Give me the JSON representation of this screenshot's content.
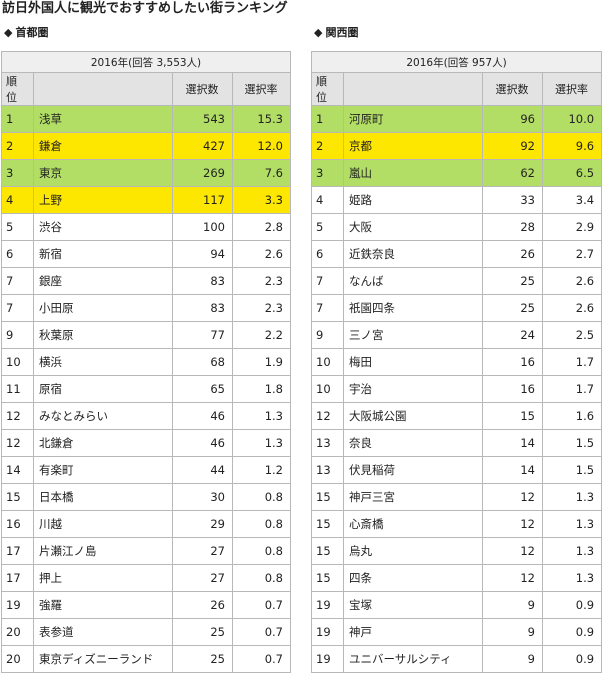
{
  "title": "訪日外国人に観光でおすすめしたい街ランキング",
  "colors": {
    "green": "#b3de66",
    "yellow": "#fde600"
  },
  "tables": [
    {
      "section": "首都圏",
      "caption": "2016年(回答 3,553人)",
      "headers": [
        "順位",
        "",
        "選択数",
        "選択率"
      ],
      "rows": [
        {
          "rank": "1",
          "name": "浅草",
          "count": "543",
          "rate": "15.3",
          "highlight": "green"
        },
        {
          "rank": "2",
          "name": "鎌倉",
          "count": "427",
          "rate": "12.0",
          "highlight": "yellow"
        },
        {
          "rank": "3",
          "name": "東京",
          "count": "269",
          "rate": "7.6",
          "highlight": "green"
        },
        {
          "rank": "4",
          "name": "上野",
          "count": "117",
          "rate": "3.3",
          "highlight": "yellow"
        },
        {
          "rank": "5",
          "name": "渋谷",
          "count": "100",
          "rate": "2.8",
          "highlight": ""
        },
        {
          "rank": "6",
          "name": "新宿",
          "count": "94",
          "rate": "2.6",
          "highlight": ""
        },
        {
          "rank": "7",
          "name": "銀座",
          "count": "83",
          "rate": "2.3",
          "highlight": ""
        },
        {
          "rank": "7",
          "name": "小田原",
          "count": "83",
          "rate": "2.3",
          "highlight": ""
        },
        {
          "rank": "9",
          "name": "秋葉原",
          "count": "77",
          "rate": "2.2",
          "highlight": ""
        },
        {
          "rank": "10",
          "name": "横浜",
          "count": "68",
          "rate": "1.9",
          "highlight": ""
        },
        {
          "rank": "11",
          "name": "原宿",
          "count": "65",
          "rate": "1.8",
          "highlight": ""
        },
        {
          "rank": "12",
          "name": "みなとみらい",
          "count": "46",
          "rate": "1.3",
          "highlight": ""
        },
        {
          "rank": "12",
          "name": "北鎌倉",
          "count": "46",
          "rate": "1.3",
          "highlight": ""
        },
        {
          "rank": "14",
          "name": "有楽町",
          "count": "44",
          "rate": "1.2",
          "highlight": ""
        },
        {
          "rank": "15",
          "name": "日本橋",
          "count": "30",
          "rate": "0.8",
          "highlight": ""
        },
        {
          "rank": "16",
          "name": "川越",
          "count": "29",
          "rate": "0.8",
          "highlight": ""
        },
        {
          "rank": "17",
          "name": "片瀬江ノ島",
          "count": "27",
          "rate": "0.8",
          "highlight": ""
        },
        {
          "rank": "17",
          "name": "押上",
          "count": "27",
          "rate": "0.8",
          "highlight": ""
        },
        {
          "rank": "19",
          "name": "強羅",
          "count": "26",
          "rate": "0.7",
          "highlight": ""
        },
        {
          "rank": "20",
          "name": "表参道",
          "count": "25",
          "rate": "0.7",
          "highlight": ""
        },
        {
          "rank": "20",
          "name": "東京ディズニーランド",
          "count": "25",
          "rate": "0.7",
          "highlight": ""
        }
      ]
    },
    {
      "section": "関西圏",
      "caption": "2016年(回答 957人)",
      "headers": [
        "順位",
        "",
        "選択数",
        "選択率"
      ],
      "rows": [
        {
          "rank": "1",
          "name": "河原町",
          "count": "96",
          "rate": "10.0",
          "highlight": "green"
        },
        {
          "rank": "2",
          "name": "京都",
          "count": "92",
          "rate": "9.6",
          "highlight": "yellow"
        },
        {
          "rank": "3",
          "name": "嵐山",
          "count": "62",
          "rate": "6.5",
          "highlight": "green"
        },
        {
          "rank": "4",
          "name": "姫路",
          "count": "33",
          "rate": "3.4",
          "highlight": ""
        },
        {
          "rank": "5",
          "name": "大阪",
          "count": "28",
          "rate": "2.9",
          "highlight": ""
        },
        {
          "rank": "6",
          "name": "近鉄奈良",
          "count": "26",
          "rate": "2.7",
          "highlight": ""
        },
        {
          "rank": "7",
          "name": "なんば",
          "count": "25",
          "rate": "2.6",
          "highlight": ""
        },
        {
          "rank": "7",
          "name": "祇園四条",
          "count": "25",
          "rate": "2.6",
          "highlight": ""
        },
        {
          "rank": "9",
          "name": "三ノ宮",
          "count": "24",
          "rate": "2.5",
          "highlight": ""
        },
        {
          "rank": "10",
          "name": "梅田",
          "count": "16",
          "rate": "1.7",
          "highlight": ""
        },
        {
          "rank": "10",
          "name": "宇治",
          "count": "16",
          "rate": "1.7",
          "highlight": ""
        },
        {
          "rank": "12",
          "name": "大阪城公園",
          "count": "15",
          "rate": "1.6",
          "highlight": ""
        },
        {
          "rank": "13",
          "name": "奈良",
          "count": "14",
          "rate": "1.5",
          "highlight": ""
        },
        {
          "rank": "13",
          "name": "伏見稲荷",
          "count": "14",
          "rate": "1.5",
          "highlight": ""
        },
        {
          "rank": "15",
          "name": "神戸三宮",
          "count": "12",
          "rate": "1.3",
          "highlight": ""
        },
        {
          "rank": "15",
          "name": "心斎橋",
          "count": "12",
          "rate": "1.3",
          "highlight": ""
        },
        {
          "rank": "15",
          "name": "烏丸",
          "count": "12",
          "rate": "1.3",
          "highlight": ""
        },
        {
          "rank": "15",
          "name": "四条",
          "count": "12",
          "rate": "1.3",
          "highlight": ""
        },
        {
          "rank": "19",
          "name": "宝塚",
          "count": "9",
          "rate": "0.9",
          "highlight": ""
        },
        {
          "rank": "19",
          "name": "神戸",
          "count": "9",
          "rate": "0.9",
          "highlight": ""
        },
        {
          "rank": "19",
          "name": "ユニバーサルシティ",
          "count": "9",
          "rate": "0.9",
          "highlight": ""
        }
      ]
    }
  ]
}
